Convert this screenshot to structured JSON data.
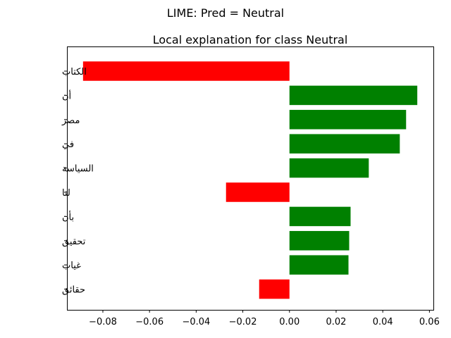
{
  "chart_data": {
    "type": "bar",
    "orientation": "horizontal",
    "suptitle": "LIME: Pred = Neutral",
    "title": "Local explanation for class Neutral",
    "xlabel": "",
    "ylabel": "",
    "categories": [
      "الكتاب",
      "أن",
      "مصر",
      "في",
      "السياسة",
      "لنا",
      "بأن",
      "تحقيق",
      "غياب",
      "حقائق"
    ],
    "values": [
      -0.0885,
      0.0548,
      0.05,
      0.0473,
      0.034,
      -0.0272,
      0.0262,
      0.0256,
      0.0253,
      -0.013
    ],
    "xlim": [
      -0.0954,
      0.0617
    ],
    "xticks": [
      -0.08,
      -0.06,
      -0.04,
      -0.02,
      0.0,
      0.02,
      0.04,
      0.06
    ],
    "xtick_labels": [
      "−0.08",
      "−0.06",
      "−0.04",
      "−0.02",
      "0.00",
      "0.02",
      "0.04",
      "0.06"
    ],
    "colors": {
      "positive": "#008000",
      "negative": "#ff0000"
    },
    "grid": false,
    "legend": "none"
  }
}
